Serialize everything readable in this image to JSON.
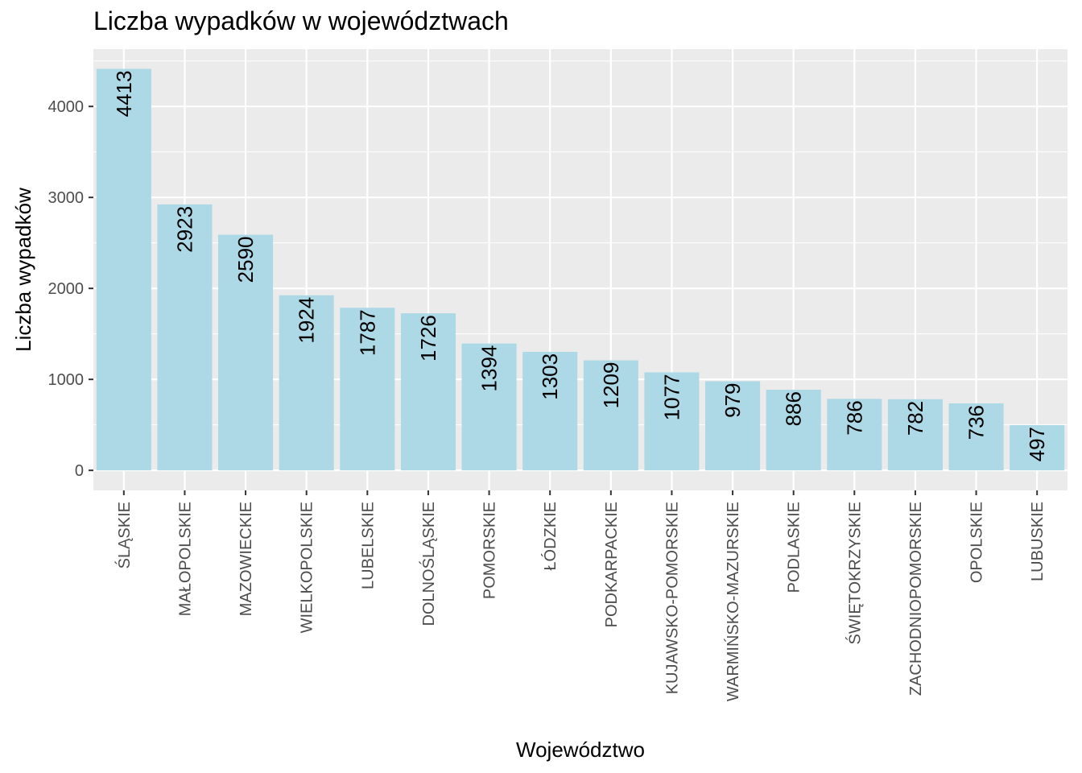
{
  "chart_data": {
    "type": "bar",
    "title": "Liczba wypadków w województwach",
    "xlabel": "Województwo",
    "ylabel": "Liczba wypadków",
    "categories": [
      "ŚLĄSKIE",
      "MAŁOPOLSKIE",
      "MAZOWIECKIE",
      "WIELKOPOLSKIE",
      "LUBELSKIE",
      "DOLNOŚLĄSKIE",
      "POMORSKIE",
      "ŁÓDZKIE",
      "PODKARPACKIE",
      "KUJAWSKO-POMORSKIE",
      "WARMIŃSKO-MAZURSKIE",
      "PODLASKIE",
      "ŚWIĘTOKRZYSKIE",
      "ZACHODNIOPOMORSKIE",
      "OPOLSKIE",
      "LUBUSKIE"
    ],
    "values": [
      4413,
      2923,
      2590,
      1924,
      1787,
      1726,
      1394,
      1303,
      1209,
      1077,
      979,
      886,
      786,
      782,
      736,
      497
    ],
    "ylim": [
      -220,
      4630
    ],
    "yticks": [
      0,
      1000,
      2000,
      3000,
      4000
    ],
    "grid": true,
    "legend": "none",
    "colors": {
      "bar": "#add8e6",
      "panel": "#ebebeb",
      "grid": "#ffffff",
      "tick_text": "#4d4d4d",
      "tick_mark": "#333333"
    }
  }
}
